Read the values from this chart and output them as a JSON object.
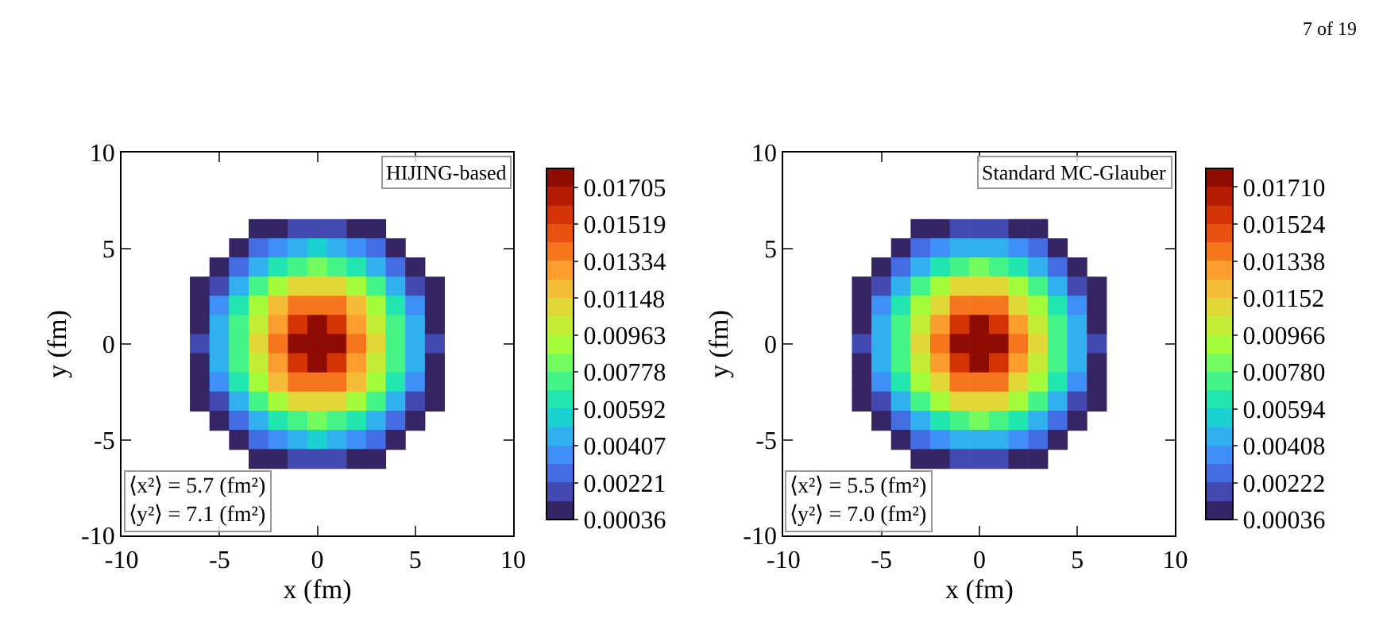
{
  "chart_data": [
    {
      "type": "heatmap",
      "xlabel": "x (fm)",
      "ylabel": "y (fm)",
      "xlim": [
        -10,
        10
      ],
      "ylim": [
        -10,
        10
      ],
      "xticks": [
        -10,
        -5,
        0,
        5,
        10
      ],
      "yticks": [
        -10,
        -5,
        0,
        5,
        10
      ],
      "x": [
        -6,
        -5,
        -4,
        -3,
        -2,
        -1,
        0,
        1,
        2,
        3,
        4,
        5,
        6
      ],
      "y": [
        6,
        5,
        4,
        3,
        2,
        1,
        0,
        -1,
        -2,
        -3,
        -4,
        -5,
        -6
      ],
      "cells": [
        [
          null,
          null,
          null,
          0.0006,
          0.0011,
          0.0017,
          0.002,
          0.0017,
          0.0011,
          0.0006,
          null,
          null,
          null
        ],
        [
          null,
          null,
          0.0009,
          0.0023,
          0.0038,
          0.0047,
          0.005,
          0.0047,
          0.0038,
          0.0023,
          0.0009,
          null,
          null
        ],
        [
          null,
          0.0009,
          0.0027,
          0.0048,
          0.0065,
          0.0077,
          0.0081,
          0.0077,
          0.0065,
          0.0048,
          0.0027,
          0.0009,
          null
        ],
        [
          0.0004,
          0.002,
          0.0047,
          0.0071,
          0.0091,
          0.0106,
          0.0111,
          0.0106,
          0.0091,
          0.0071,
          0.0047,
          0.002,
          0.0004
        ],
        [
          0.0009,
          0.0033,
          0.0062,
          0.009,
          0.0115,
          0.0134,
          0.0141,
          0.0134,
          0.0115,
          0.009,
          0.0062,
          0.0033,
          0.0009
        ],
        [
          0.0012,
          0.0042,
          0.0072,
          0.0103,
          0.0132,
          0.0158,
          0.0171,
          0.0158,
          0.0132,
          0.0103,
          0.0072,
          0.0042,
          0.0012
        ],
        [
          0.0013,
          0.0045,
          0.0076,
          0.0108,
          0.0139,
          0.0171,
          0.0179,
          0.0171,
          0.0139,
          0.0108,
          0.0076,
          0.0045,
          0.0013
        ],
        [
          0.0012,
          0.0042,
          0.0072,
          0.0103,
          0.0132,
          0.0158,
          0.0171,
          0.0158,
          0.0132,
          0.0103,
          0.0072,
          0.0042,
          0.0012
        ],
        [
          0.0009,
          0.0033,
          0.0062,
          0.009,
          0.0115,
          0.0134,
          0.0141,
          0.0134,
          0.0115,
          0.009,
          0.0062,
          0.0033,
          0.0009
        ],
        [
          0.0004,
          0.002,
          0.0047,
          0.0071,
          0.0091,
          0.0106,
          0.0111,
          0.0106,
          0.0091,
          0.0071,
          0.0047,
          0.002,
          0.0004
        ],
        [
          null,
          0.0009,
          0.0027,
          0.0048,
          0.0065,
          0.0077,
          0.0081,
          0.0077,
          0.0065,
          0.0048,
          0.0027,
          0.0009,
          null
        ],
        [
          null,
          null,
          0.0009,
          0.0023,
          0.0038,
          0.0047,
          0.005,
          0.0047,
          0.0038,
          0.0023,
          0.0009,
          null,
          null
        ],
        [
          null,
          null,
          null,
          0.0006,
          0.0011,
          0.0017,
          0.002,
          0.0017,
          0.0011,
          0.0006,
          null,
          null,
          null
        ]
      ],
      "clim": [
        0.00036,
        0.01798
      ],
      "cticks": [
        0.00036,
        0.00221,
        0.00407,
        0.00592,
        0.00778,
        0.00963,
        0.01148,
        0.01334,
        0.01519,
        0.01705
      ],
      "annotations": [
        "HIJING-based",
        "⟨x²⟩ = 5.7 (fm²)\n⟨y²⟩ = 7.1 (fm²)"
      ]
    },
    {
      "type": "heatmap",
      "xlabel": "x (fm)",
      "ylabel": "y (fm)",
      "xlim": [
        -10,
        10
      ],
      "ylim": [
        -10,
        10
      ],
      "xticks": [
        -10,
        -5,
        0,
        5,
        10
      ],
      "yticks": [
        -10,
        -5,
        0,
        5,
        10
      ],
      "x": [
        -6,
        -5,
        -4,
        -3,
        -2,
        -1,
        0,
        1,
        2,
        3,
        4,
        5,
        6
      ],
      "y": [
        6,
        5,
        4,
        3,
        2,
        1,
        0,
        -1,
        -2,
        -3,
        -4,
        -5,
        -6
      ],
      "cells": [
        [
          null,
          null,
          null,
          0.0006,
          0.0011,
          0.0017,
          0.002,
          0.0017,
          0.0011,
          0.0006,
          null,
          null,
          null
        ],
        [
          null,
          null,
          0.0009,
          0.0023,
          0.0038,
          0.0047,
          0.005,
          0.0047,
          0.0038,
          0.0023,
          0.0009,
          null,
          null
        ],
        [
          null,
          0.0009,
          0.0027,
          0.0048,
          0.0065,
          0.0077,
          0.0081,
          0.0077,
          0.0065,
          0.0048,
          0.0027,
          0.0009,
          null
        ],
        [
          0.0004,
          0.002,
          0.0047,
          0.0071,
          0.0091,
          0.0106,
          0.0111,
          0.0106,
          0.0091,
          0.0071,
          0.0047,
          0.002,
          0.0004
        ],
        [
          0.0009,
          0.0033,
          0.0062,
          0.009,
          0.0115,
          0.0134,
          0.0141,
          0.0134,
          0.0115,
          0.009,
          0.0062,
          0.0033,
          0.0009
        ],
        [
          0.0012,
          0.0042,
          0.0072,
          0.0103,
          0.0132,
          0.0158,
          0.0172,
          0.0158,
          0.0132,
          0.0103,
          0.0072,
          0.0042,
          0.0012
        ],
        [
          0.0013,
          0.0045,
          0.0076,
          0.0108,
          0.0139,
          0.0172,
          0.018,
          0.0172,
          0.0139,
          0.0108,
          0.0076,
          0.0045,
          0.0013
        ],
        [
          0.0012,
          0.0042,
          0.0072,
          0.0103,
          0.0132,
          0.0158,
          0.0172,
          0.0158,
          0.0132,
          0.0103,
          0.0072,
          0.0042,
          0.0012
        ],
        [
          0.0009,
          0.0033,
          0.0062,
          0.009,
          0.0115,
          0.0134,
          0.0141,
          0.0134,
          0.0115,
          0.009,
          0.0062,
          0.0033,
          0.0009
        ],
        [
          0.0004,
          0.002,
          0.0047,
          0.0071,
          0.0091,
          0.0106,
          0.0111,
          0.0106,
          0.0091,
          0.0071,
          0.0047,
          0.002,
          0.0004
        ],
        [
          null,
          0.0009,
          0.0027,
          0.0048,
          0.0065,
          0.0077,
          0.0081,
          0.0077,
          0.0065,
          0.0048,
          0.0027,
          0.0009,
          null
        ],
        [
          null,
          null,
          0.0009,
          0.0023,
          0.0038,
          0.0047,
          0.005,
          0.0047,
          0.0038,
          0.0023,
          0.0009,
          null,
          null
        ],
        [
          null,
          null,
          null,
          0.0006,
          0.0011,
          0.0017,
          0.002,
          0.0017,
          0.0011,
          0.0006,
          null,
          null,
          null
        ]
      ],
      "clim": [
        0.00036,
        0.01803
      ],
      "cticks": [
        0.00036,
        0.00222,
        0.00408,
        0.00594,
        {
          "value": 0.0078,
          "label": "0.00780"
        },
        0.00966,
        0.01152,
        0.01338,
        0.01524,
        {
          "value": 0.0171,
          "label": "0.01710"
        }
      ],
      "annotations": [
        "Standard MC-Glauber",
        "⟨x²⟩ = 5.5 (fm²)\n⟨y²⟩ = 7.0 (fm²)",
        "7 of 19"
      ]
    }
  ]
}
